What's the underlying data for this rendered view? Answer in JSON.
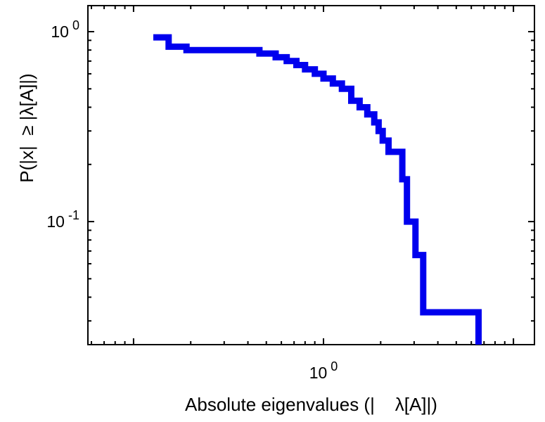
{
  "chart_data": {
    "type": "line",
    "subtype": "step-ccdf",
    "title": "",
    "xlabel": "Absolute eigenvalues (|    λ[A]|)",
    "ylabel": "P(|x|  ≥ |λ[A]|)",
    "xscale": "log",
    "yscale": "log",
    "xlim": [
      0.0575,
      12.9
    ],
    "ylim": [
      0.0225,
      1.371
    ],
    "grid": false,
    "legend": "none",
    "background_color": "#ffffff",
    "axis_color": "#000000",
    "line_color": "#0000ee",
    "line_width": 9,
    "x_axis": {
      "labels": [
        {
          "value": 1,
          "base": "10",
          "exp": "0"
        }
      ]
    },
    "y_axis": {
      "labels": [
        {
          "value": 1,
          "base": "10",
          "exp": "0"
        },
        {
          "value": 0.1,
          "base": "10",
          "exp": "-1"
        }
      ]
    },
    "points": [
      [
        0.127,
        0.933
      ],
      [
        0.153,
        0.833
      ],
      [
        0.19,
        0.8
      ],
      [
        0.46,
        0.767
      ],
      [
        0.56,
        0.733
      ],
      [
        0.64,
        0.7
      ],
      [
        0.72,
        0.667
      ],
      [
        0.8,
        0.633
      ],
      [
        0.9,
        0.6
      ],
      [
        1.0,
        0.567
      ],
      [
        1.12,
        0.533
      ],
      [
        1.25,
        0.5
      ],
      [
        1.4,
        0.433
      ],
      [
        1.55,
        0.4
      ],
      [
        1.7,
        0.367
      ],
      [
        1.85,
        0.333
      ],
      [
        1.95,
        0.3
      ],
      [
        2.05,
        0.267
      ],
      [
        2.2,
        0.233
      ],
      [
        2.6,
        0.167
      ],
      [
        2.75,
        0.1
      ],
      [
        3.05,
        0.0667
      ],
      [
        3.35,
        0.0333
      ]
    ],
    "max_value": 6.55
  }
}
